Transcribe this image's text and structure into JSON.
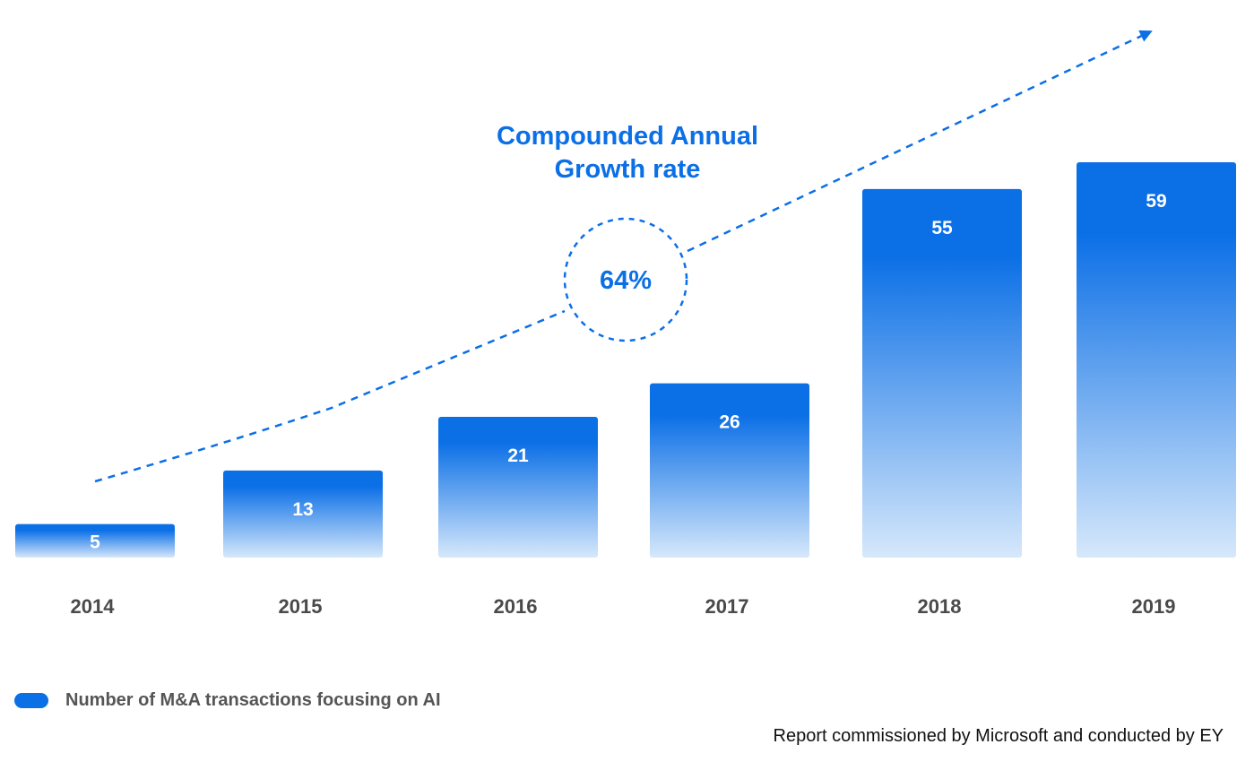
{
  "colors": {
    "bar_top": "#0b6fe6",
    "bar_bottom": "#d6e8fb",
    "annotation": "#0b6fe6",
    "axis_label": "#4a4a4a"
  },
  "chart_data": {
    "type": "bar",
    "categories": [
      "2014",
      "2015",
      "2016",
      "2017",
      "2018",
      "2019"
    ],
    "series": [
      {
        "name": "Number of M&A transactions focusing on AI",
        "values": [
          5,
          13,
          21,
          26,
          55,
          59
        ]
      }
    ],
    "data_labels": [
      "5",
      "13",
      "21",
      "26",
      "55",
      "59"
    ],
    "title": "",
    "xlabel": "",
    "ylabel": "",
    "ylim": [
      0,
      59
    ],
    "grid": false,
    "legend_position": "bottom-left",
    "annotation": {
      "title_lines": [
        "Compounded Annual",
        "Growth rate"
      ],
      "value": "64%",
      "style": "dashed trend arrow with dashed circle"
    }
  },
  "legend": {
    "label": "Number of M&A transactions focusing on AI"
  },
  "source": "Report commissioned by Microsoft and conducted by EY"
}
